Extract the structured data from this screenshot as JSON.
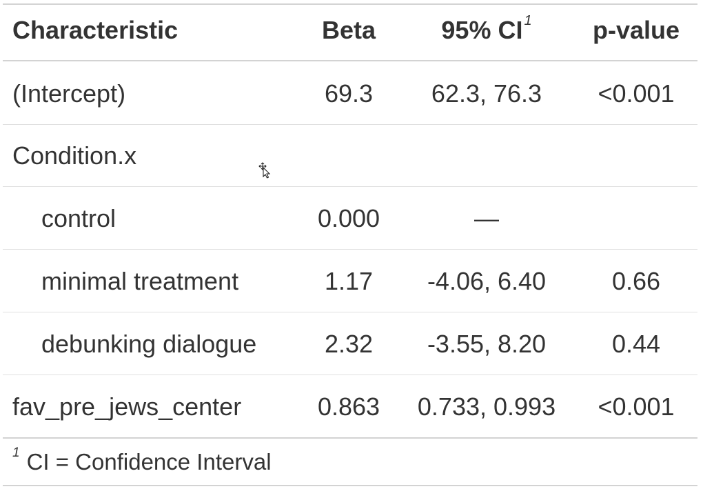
{
  "table": {
    "headers": {
      "characteristic": "Characteristic",
      "beta": "Beta",
      "ci": "95% CI",
      "ci_footnote_mark": "1",
      "p_value": "p-value"
    },
    "rows": [
      {
        "label": "(Intercept)",
        "indent": false,
        "beta": "69.3",
        "ci": "62.3, 76.3",
        "p": "<0.001"
      },
      {
        "label": "Condition.x",
        "indent": false,
        "beta": "",
        "ci": "",
        "p": ""
      },
      {
        "label": "control",
        "indent": true,
        "beta": "0.000",
        "ci": "—",
        "p": ""
      },
      {
        "label": "minimal treatment",
        "indent": true,
        "beta": "1.17",
        "ci": "-4.06, 6.40",
        "p": "0.66"
      },
      {
        "label": "debunking dialogue",
        "indent": true,
        "beta": "2.32",
        "ci": "-3.55, 8.20",
        "p": "0.44"
      },
      {
        "label": "fav_pre_jews_center",
        "indent": false,
        "beta": "0.863",
        "ci": "0.733, 0.993",
        "p": "<0.001"
      }
    ],
    "footnote": {
      "mark": "1",
      "text": "CI = Confidence Interval"
    }
  },
  "cursor": {
    "icon": "move-cursor-icon"
  }
}
